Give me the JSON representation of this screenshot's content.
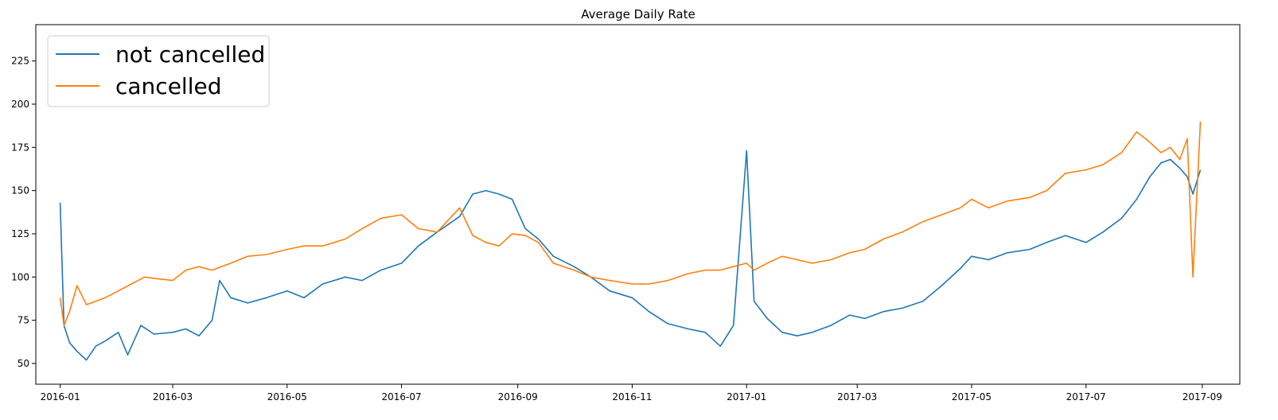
{
  "chart_data": {
    "type": "line",
    "title": "Average Daily Rate",
    "xlabel": "",
    "ylabel": "",
    "x_range": [
      "2015-12-19",
      "2017-09-21"
    ],
    "ylim": [
      38,
      246
    ],
    "x_ticks": [
      "2016-01",
      "2016-03",
      "2016-05",
      "2016-07",
      "2016-09",
      "2016-11",
      "2017-01",
      "2017-03",
      "2017-05",
      "2017-07",
      "2017-09"
    ],
    "y_ticks": [
      50,
      75,
      100,
      125,
      150,
      175,
      200,
      225
    ],
    "grid": false,
    "legend_position": "upper-left",
    "series": [
      {
        "name": "not cancelled",
        "color": "#1f77b4",
        "points": [
          [
            "2016-01-01",
            143
          ],
          [
            "2016-01-03",
            72
          ],
          [
            "2016-01-06",
            62
          ],
          [
            "2016-01-10",
            57
          ],
          [
            "2016-01-15",
            52
          ],
          [
            "2016-01-20",
            60
          ],
          [
            "2016-01-25",
            63
          ],
          [
            "2016-02-01",
            68
          ],
          [
            "2016-02-06",
            55
          ],
          [
            "2016-02-13",
            72
          ],
          [
            "2016-02-20",
            67
          ],
          [
            "2016-03-01",
            68
          ],
          [
            "2016-03-08",
            70
          ],
          [
            "2016-03-15",
            66
          ],
          [
            "2016-03-22",
            75
          ],
          [
            "2016-03-26",
            98
          ],
          [
            "2016-04-01",
            88
          ],
          [
            "2016-04-10",
            85
          ],
          [
            "2016-04-20",
            88
          ],
          [
            "2016-05-01",
            92
          ],
          [
            "2016-05-10",
            88
          ],
          [
            "2016-05-20",
            96
          ],
          [
            "2016-06-01",
            100
          ],
          [
            "2016-06-10",
            98
          ],
          [
            "2016-06-20",
            104
          ],
          [
            "2016-07-01",
            108
          ],
          [
            "2016-07-10",
            118
          ],
          [
            "2016-07-20",
            126
          ],
          [
            "2016-08-01",
            135
          ],
          [
            "2016-08-08",
            148
          ],
          [
            "2016-08-15",
            150
          ],
          [
            "2016-08-22",
            148
          ],
          [
            "2016-08-29",
            145
          ],
          [
            "2016-09-05",
            128
          ],
          [
            "2016-09-12",
            122
          ],
          [
            "2016-09-20",
            112
          ],
          [
            "2016-10-01",
            106
          ],
          [
            "2016-10-10",
            100
          ],
          [
            "2016-10-20",
            92
          ],
          [
            "2016-11-01",
            88
          ],
          [
            "2016-11-10",
            80
          ],
          [
            "2016-11-20",
            73
          ],
          [
            "2016-12-01",
            70
          ],
          [
            "2016-12-10",
            68
          ],
          [
            "2016-12-18",
            60
          ],
          [
            "2016-12-25",
            72
          ],
          [
            "2017-01-01",
            173
          ],
          [
            "2017-01-05",
            86
          ],
          [
            "2017-01-12",
            76
          ],
          [
            "2017-01-20",
            68
          ],
          [
            "2017-01-28",
            66
          ],
          [
            "2017-02-05",
            68
          ],
          [
            "2017-02-15",
            72
          ],
          [
            "2017-02-25",
            78
          ],
          [
            "2017-03-05",
            76
          ],
          [
            "2017-03-15",
            80
          ],
          [
            "2017-03-25",
            82
          ],
          [
            "2017-04-05",
            86
          ],
          [
            "2017-04-15",
            95
          ],
          [
            "2017-04-25",
            105
          ],
          [
            "2017-05-01",
            112
          ],
          [
            "2017-05-10",
            110
          ],
          [
            "2017-05-20",
            114
          ],
          [
            "2017-06-01",
            116
          ],
          [
            "2017-06-10",
            120
          ],
          [
            "2017-06-20",
            124
          ],
          [
            "2017-07-01",
            120
          ],
          [
            "2017-07-10",
            126
          ],
          [
            "2017-07-20",
            134
          ],
          [
            "2017-07-28",
            145
          ],
          [
            "2017-08-04",
            158
          ],
          [
            "2017-08-10",
            166
          ],
          [
            "2017-08-15",
            168
          ],
          [
            "2017-08-20",
            163
          ],
          [
            "2017-08-24",
            158
          ],
          [
            "2017-08-27",
            148
          ],
          [
            "2017-08-31",
            162
          ]
        ]
      },
      {
        "name": "cancelled",
        "color": "#ff7f0e",
        "points": [
          [
            "2016-01-01",
            88
          ],
          [
            "2016-01-03",
            72
          ],
          [
            "2016-01-06",
            80
          ],
          [
            "2016-01-10",
            95
          ],
          [
            "2016-01-15",
            84
          ],
          [
            "2016-01-20",
            86
          ],
          [
            "2016-01-25",
            88
          ],
          [
            "2016-02-01",
            92
          ],
          [
            "2016-02-08",
            96
          ],
          [
            "2016-02-15",
            100
          ],
          [
            "2016-02-22",
            99
          ],
          [
            "2016-03-01",
            98
          ],
          [
            "2016-03-08",
            104
          ],
          [
            "2016-03-15",
            106
          ],
          [
            "2016-03-22",
            104
          ],
          [
            "2016-04-01",
            108
          ],
          [
            "2016-04-10",
            112
          ],
          [
            "2016-04-20",
            113
          ],
          [
            "2016-05-01",
            116
          ],
          [
            "2016-05-10",
            118
          ],
          [
            "2016-05-20",
            118
          ],
          [
            "2016-06-01",
            122
          ],
          [
            "2016-06-10",
            128
          ],
          [
            "2016-06-20",
            134
          ],
          [
            "2016-07-01",
            136
          ],
          [
            "2016-07-10",
            128
          ],
          [
            "2016-07-20",
            126
          ],
          [
            "2016-08-01",
            140
          ],
          [
            "2016-08-08",
            124
          ],
          [
            "2016-08-15",
            120
          ],
          [
            "2016-08-22",
            118
          ],
          [
            "2016-08-29",
            125
          ],
          [
            "2016-09-05",
            124
          ],
          [
            "2016-09-12",
            120
          ],
          [
            "2016-09-20",
            108
          ],
          [
            "2016-10-01",
            104
          ],
          [
            "2016-10-10",
            100
          ],
          [
            "2016-10-20",
            98
          ],
          [
            "2016-11-01",
            96
          ],
          [
            "2016-11-10",
            96
          ],
          [
            "2016-11-20",
            98
          ],
          [
            "2016-12-01",
            102
          ],
          [
            "2016-12-10",
            104
          ],
          [
            "2016-12-18",
            104
          ],
          [
            "2016-12-25",
            106
          ],
          [
            "2017-01-01",
            108
          ],
          [
            "2017-01-05",
            104
          ],
          [
            "2017-01-12",
            108
          ],
          [
            "2017-01-20",
            112
          ],
          [
            "2017-01-28",
            110
          ],
          [
            "2017-02-05",
            108
          ],
          [
            "2017-02-15",
            110
          ],
          [
            "2017-02-25",
            114
          ],
          [
            "2017-03-05",
            116
          ],
          [
            "2017-03-15",
            122
          ],
          [
            "2017-03-25",
            126
          ],
          [
            "2017-04-05",
            132
          ],
          [
            "2017-04-15",
            136
          ],
          [
            "2017-04-25",
            140
          ],
          [
            "2017-05-01",
            145
          ],
          [
            "2017-05-10",
            140
          ],
          [
            "2017-05-20",
            144
          ],
          [
            "2017-06-01",
            146
          ],
          [
            "2017-06-10",
            150
          ],
          [
            "2017-06-20",
            160
          ],
          [
            "2017-07-01",
            162
          ],
          [
            "2017-07-10",
            165
          ],
          [
            "2017-07-20",
            172
          ],
          [
            "2017-07-28",
            184
          ],
          [
            "2017-08-04",
            178
          ],
          [
            "2017-08-10",
            172
          ],
          [
            "2017-08-15",
            175
          ],
          [
            "2017-08-20",
            168
          ],
          [
            "2017-08-24",
            180
          ],
          [
            "2017-08-27",
            100
          ],
          [
            "2017-08-31",
            190
          ]
        ]
      }
    ]
  }
}
